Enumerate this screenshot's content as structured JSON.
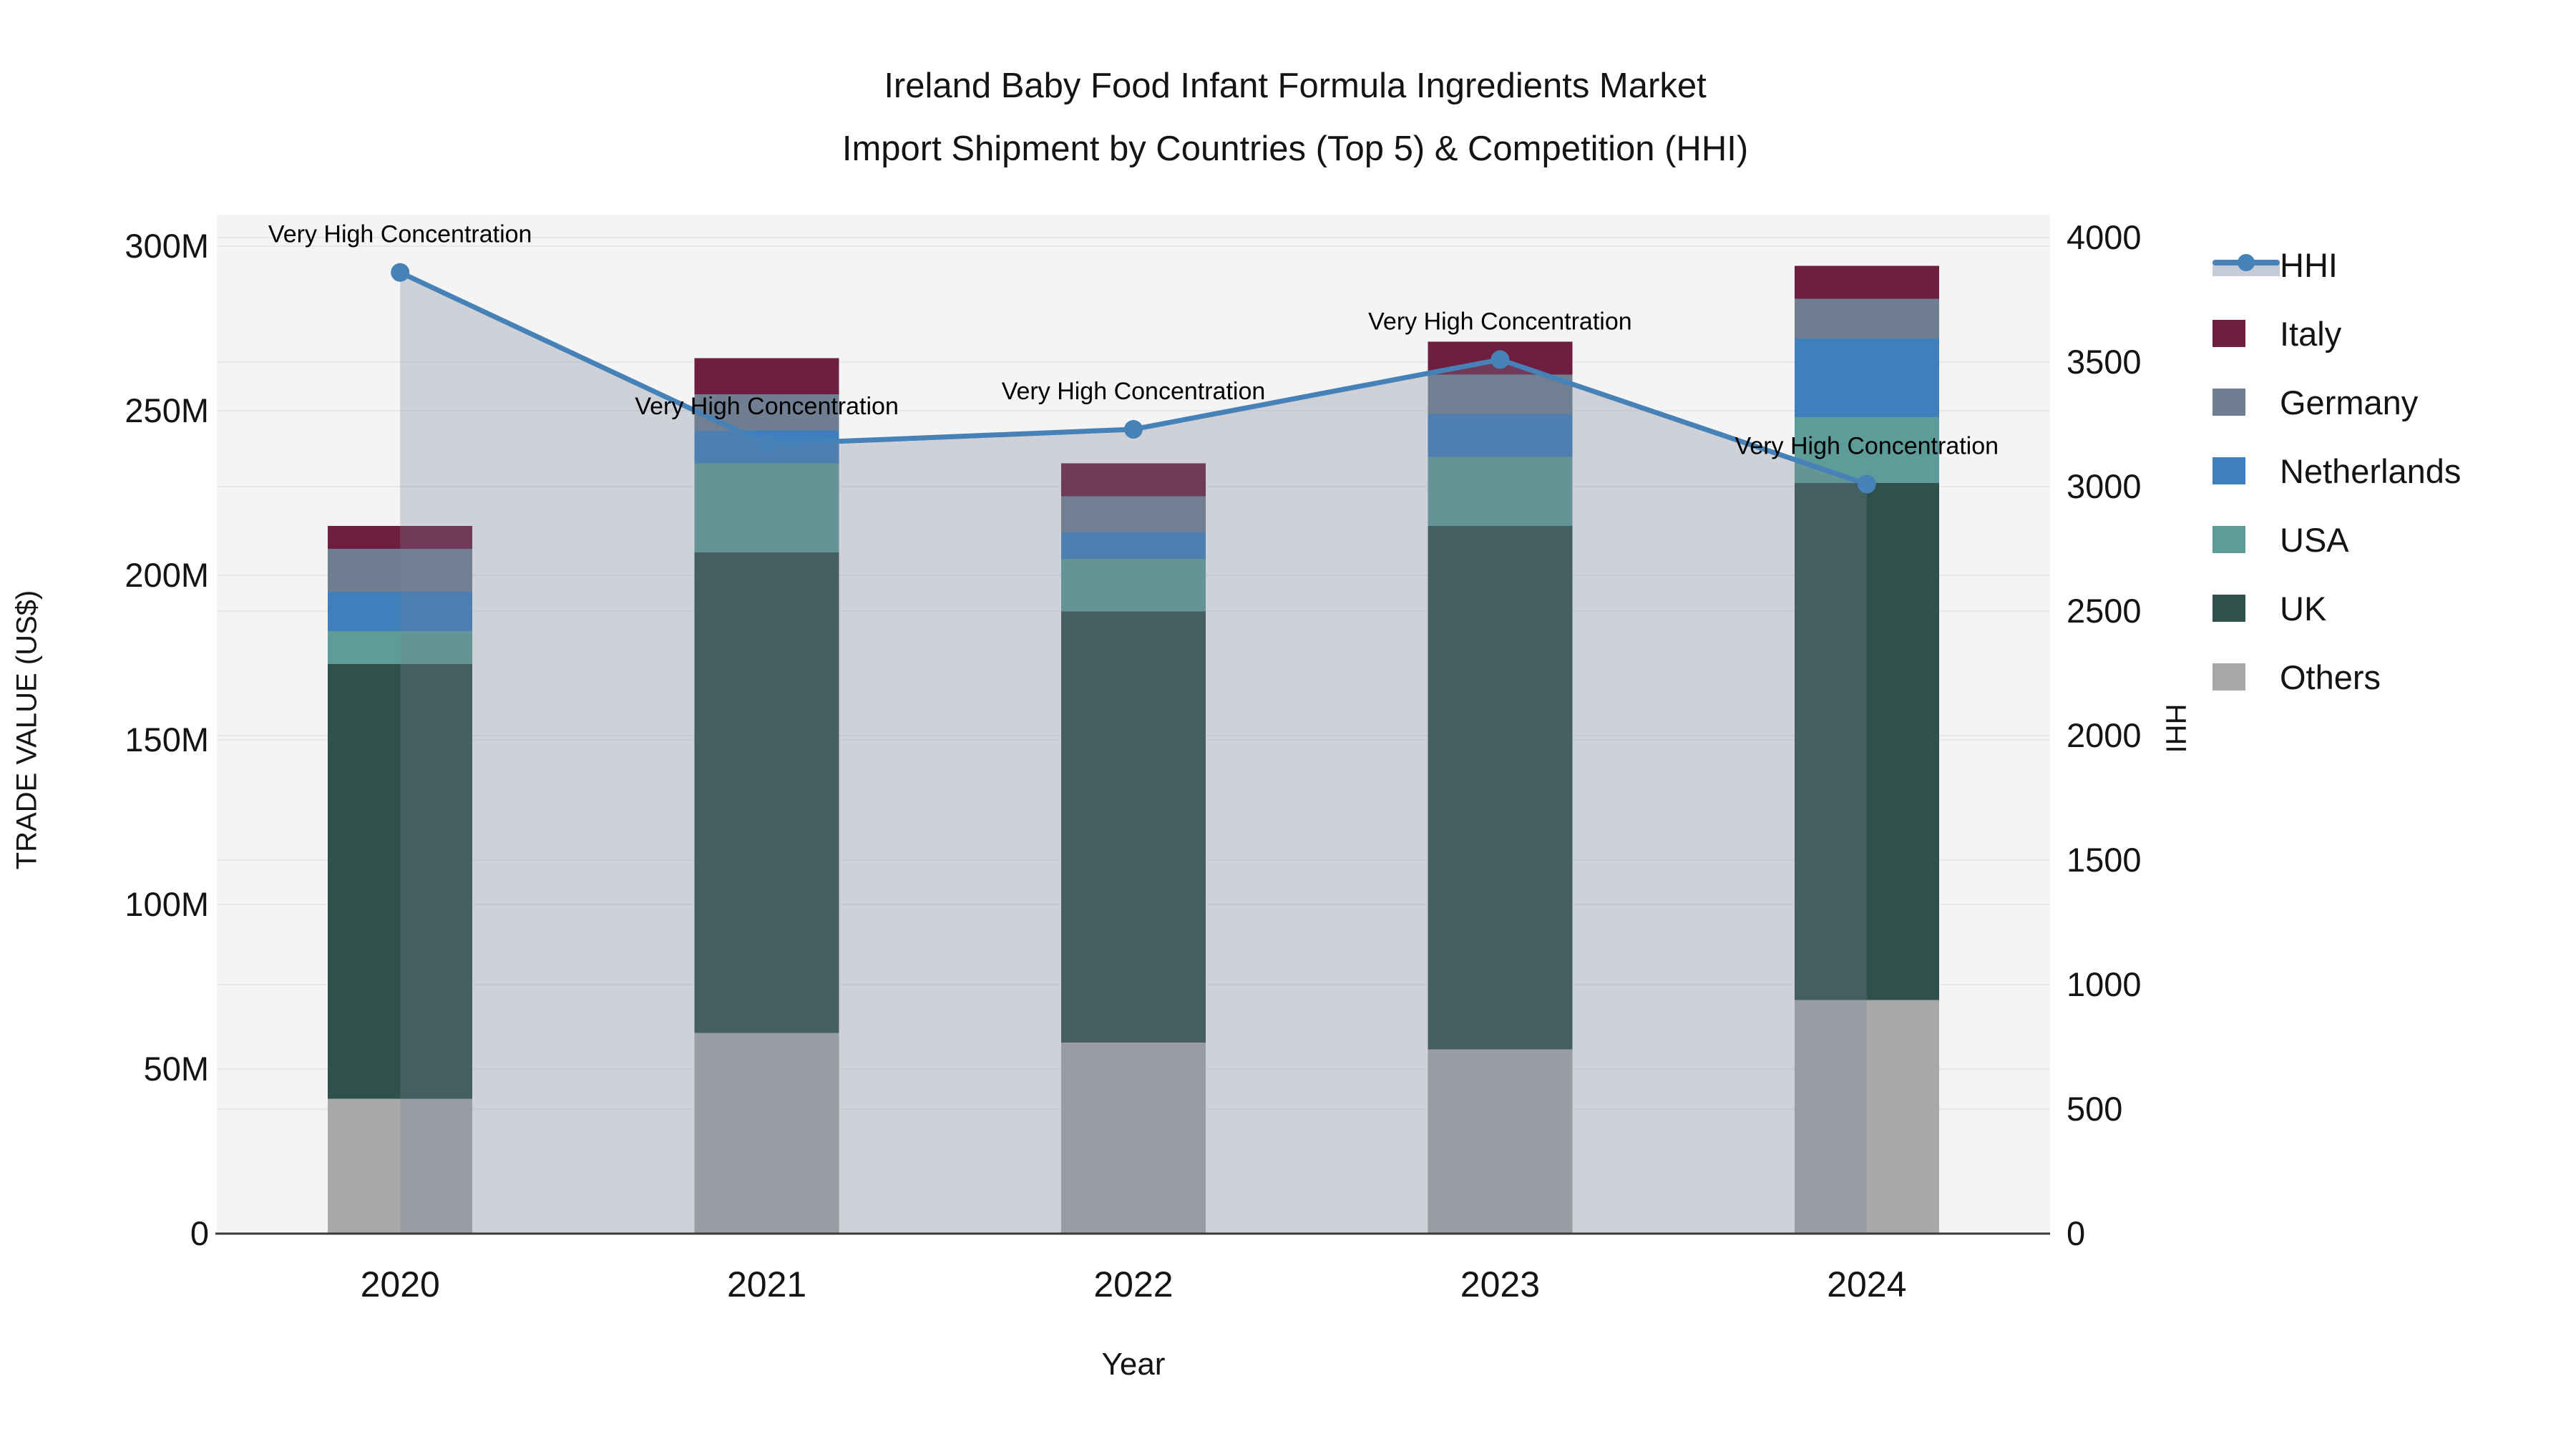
{
  "title": {
    "line1": "Ireland Baby Food Infant Formula Ingredients Market",
    "line2": "Import Shipment by Countries (Top 5) & Competition (HHI)"
  },
  "axes": {
    "x": {
      "title": "Year",
      "tick_labels": [
        "2020",
        "2021",
        "2022",
        "2023",
        "2024"
      ]
    },
    "y_left": {
      "title": "TRADE VALUE (US$)",
      "tick_labels": [
        "0",
        "50M",
        "100M",
        "150M",
        "200M",
        "250M",
        "300M"
      ],
      "tick_values_millions": [
        0,
        50,
        100,
        150,
        200,
        250,
        300
      ],
      "max_millions": 300
    },
    "y_right": {
      "title": "HHI",
      "tick_labels": [
        "0",
        "500",
        "1000",
        "1500",
        "2000",
        "2500",
        "3000",
        "3500",
        "4000"
      ],
      "tick_values": [
        0,
        500,
        1000,
        1500,
        2000,
        2500,
        3000,
        3500,
        4000
      ],
      "max": 4000
    }
  },
  "legend": {
    "items": [
      {
        "label": "HHI",
        "kind": "line",
        "color": "#4681b8",
        "band_color": "#c5cbd7"
      },
      {
        "label": "Italy",
        "kind": "swatch",
        "color": "#6e1e3e"
      },
      {
        "label": "Germany",
        "kind": "swatch",
        "color": "#6f7f91"
      },
      {
        "label": "Netherlands",
        "kind": "swatch",
        "color": "#3e7fbc"
      },
      {
        "label": "USA",
        "kind": "swatch",
        "color": "#5d9c99"
      },
      {
        "label": "UK",
        "kind": "swatch",
        "color": "#30504b"
      },
      {
        "label": "Others",
        "kind": "swatch",
        "color": "#a8a8a8"
      }
    ]
  },
  "chart_data": {
    "type": "bar",
    "subtype": "stacked-bars-with-line-overlay",
    "categories": [
      "2020",
      "2021",
      "2022",
      "2023",
      "2024"
    ],
    "bar_value_unit": "million US$",
    "stack_order": "bottom to top",
    "series": [
      {
        "name": "Others",
        "color": "#a8a8a8",
        "values": [
          41,
          61,
          58,
          56,
          71
        ]
      },
      {
        "name": "UK",
        "color": "#30504b",
        "values": [
          132,
          146,
          131,
          159,
          157
        ]
      },
      {
        "name": "USA",
        "color": "#5d9c99",
        "values": [
          10,
          27,
          16,
          21,
          20
        ]
      },
      {
        "name": "Netherlands",
        "color": "#3e7fbc",
        "values": [
          12,
          10,
          8,
          13,
          24
        ]
      },
      {
        "name": "Germany",
        "color": "#6f7f91",
        "values": [
          13,
          11,
          11,
          12,
          12
        ]
      },
      {
        "name": "Italy",
        "color": "#6e1e3e",
        "values": [
          7,
          11,
          10,
          10,
          10
        ]
      }
    ],
    "bar_totals_millions": [
      215,
      266,
      234,
      271,
      294
    ],
    "line_series": {
      "name": "HHI",
      "axis": "right",
      "color": "#4681b8",
      "area_fill_color": "rgba(120,130,150,0.30)",
      "values": [
        3860,
        3170,
        3230,
        3510,
        3010
      ]
    },
    "annotations": [
      {
        "category": "2020",
        "text": "Very High Concentration"
      },
      {
        "category": "2021",
        "text": "Very High Concentration"
      },
      {
        "category": "2022",
        "text": "Very High Concentration"
      },
      {
        "category": "2023",
        "text": "Very High Concentration"
      },
      {
        "category": "2024",
        "text": "Very High Concentration"
      }
    ],
    "title": "Ireland Baby Food Infant Formula Ingredients Market Import Shipment by Countries (Top 5) & Competition (HHI)",
    "xlabel": "Year",
    "ylabel_left": "TRADE VALUE (US$)",
    "ylabel_right": "HHI",
    "ylim_left_millions": [
      0,
      300
    ],
    "ylim_right": [
      0,
      4000
    ],
    "grid": true,
    "plot_background": "#f4f4f4",
    "legend_position": "right"
  }
}
